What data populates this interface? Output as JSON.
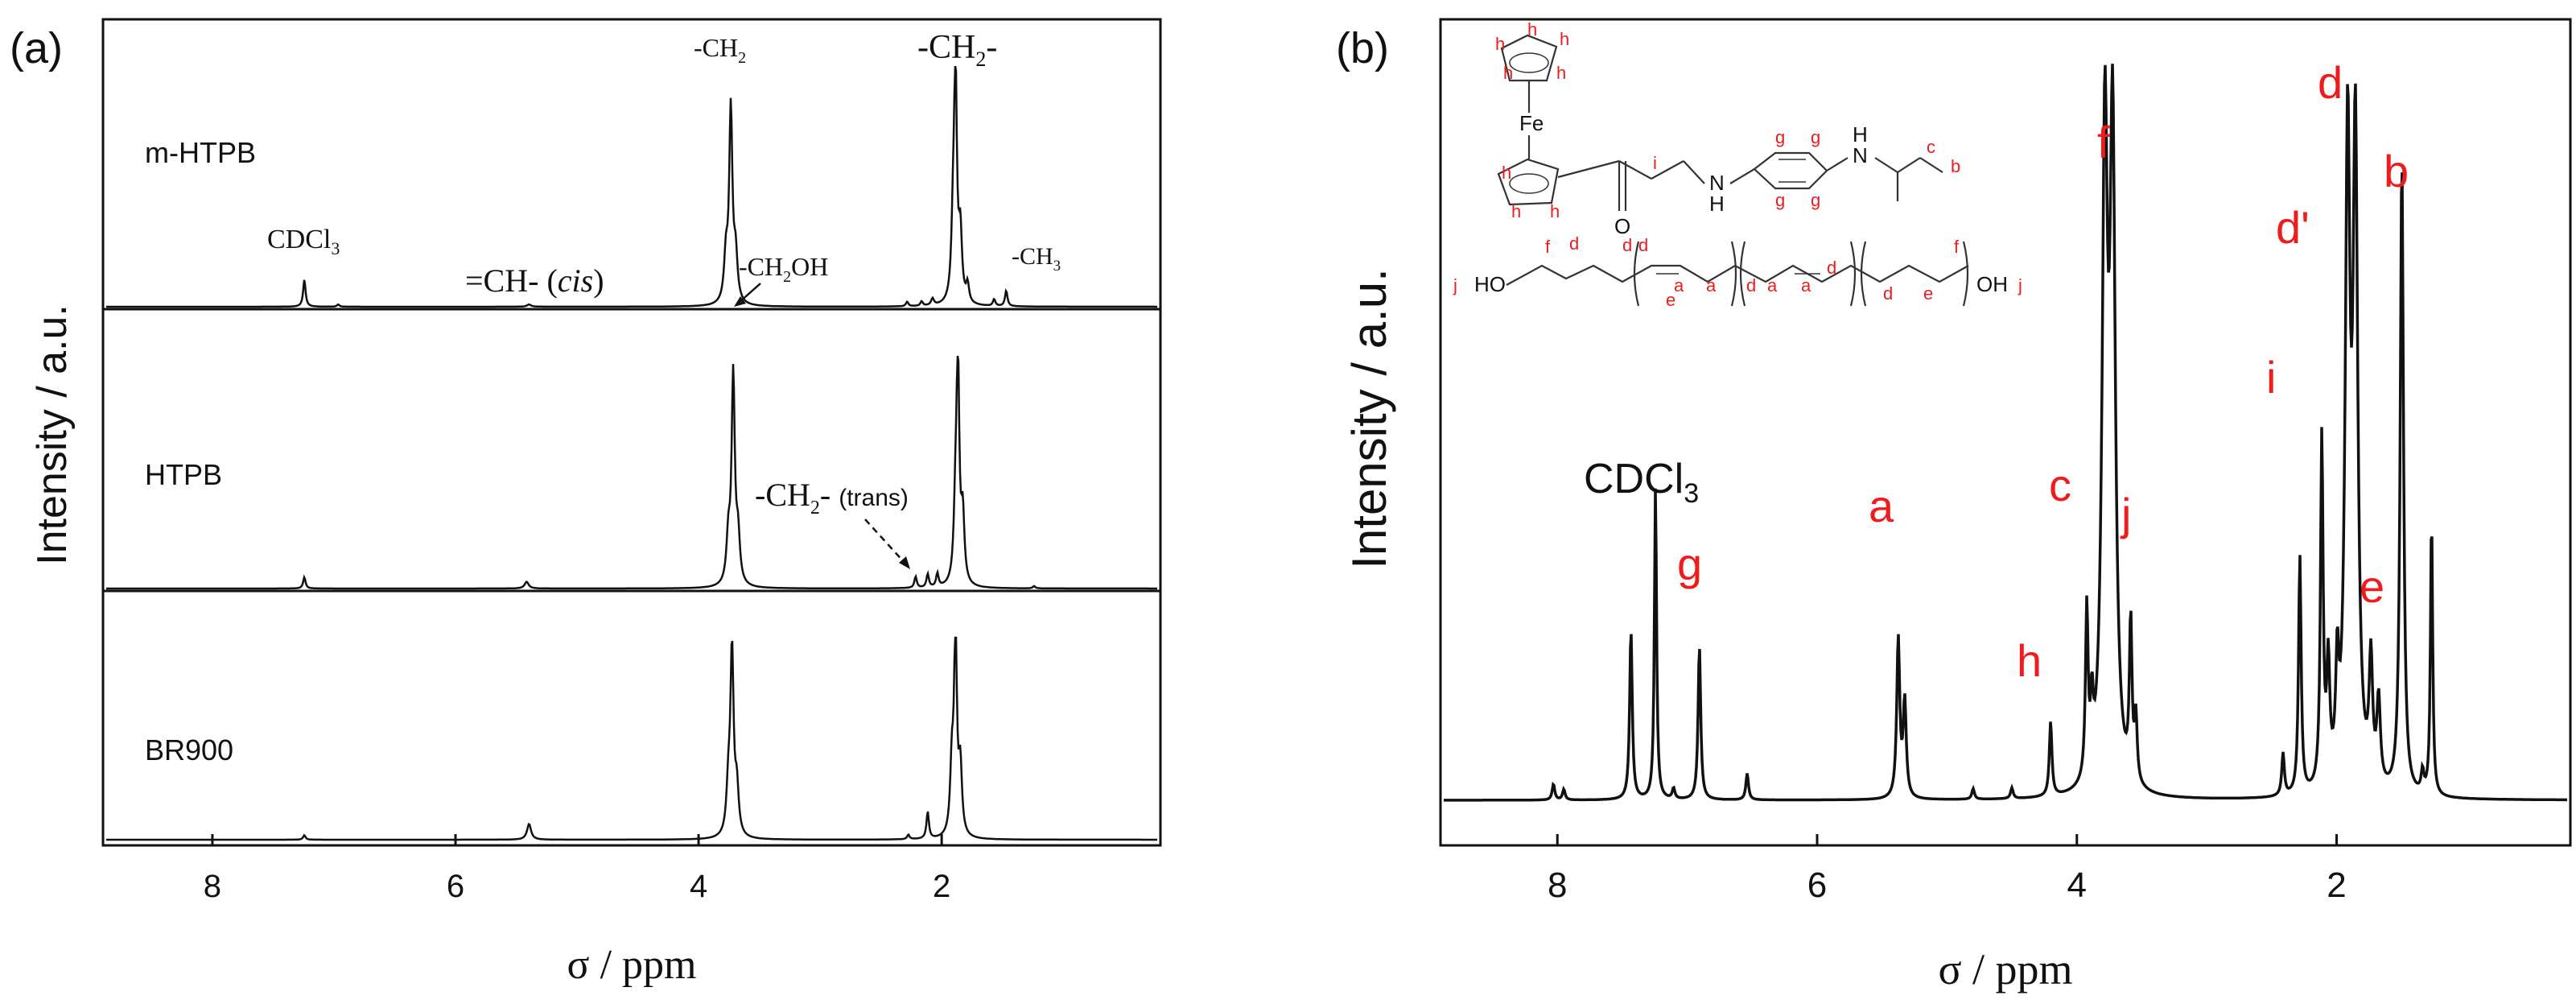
{
  "figure": {
    "panel_a_label": "(a)",
    "panel_b_label": "(b)"
  },
  "chart_data": [
    {
      "type": "line",
      "panel": "(a)",
      "xlabel": "σ / ppm",
      "ylabel": "Intensity / a.u.",
      "xlim": [
        8.9,
        0.2
      ],
      "x_ticks": [
        8,
        6,
        4,
        2
      ],
      "stacked": true,
      "series": [
        {
          "name": "m-HTPB",
          "peaks": [
            {
              "x": 7.26,
              "y": 0.12,
              "w": 0.012
            },
            {
              "x": 6.98,
              "y": 0.01,
              "w": 0.012
            },
            {
              "x": 5.4,
              "y": 0.01,
              "w": 0.02
            },
            {
              "x": 3.77,
              "y": 0.2,
              "w": 0.018
            },
            {
              "x": 3.73,
              "y": 0.86,
              "w": 0.016
            },
            {
              "x": 3.69,
              "y": 0.2,
              "w": 0.018
            },
            {
              "x": 2.27,
              "y": 0.02,
              "w": 0.012
            },
            {
              "x": 2.15,
              "y": 0.02,
              "w": 0.012
            },
            {
              "x": 2.06,
              "y": 0.03,
              "w": 0.014
            },
            {
              "x": 1.89,
              "y": 0.3,
              "w": 0.016
            },
            {
              "x": 1.87,
              "y": 1.0,
              "w": 0.014
            },
            {
              "x": 1.83,
              "y": 0.3,
              "w": 0.016
            },
            {
              "x": 1.77,
              "y": 0.08,
              "w": 0.014
            },
            {
              "x": 1.55,
              "y": 0.03,
              "w": 0.012
            },
            {
              "x": 1.45,
              "y": 0.07,
              "w": 0.012
            }
          ]
        },
        {
          "name": "HTPB",
          "peaks": [
            {
              "x": 7.26,
              "y": 0.05,
              "w": 0.012
            },
            {
              "x": 5.42,
              "y": 0.03,
              "w": 0.02
            },
            {
              "x": 3.75,
              "y": 0.2,
              "w": 0.018
            },
            {
              "x": 3.71,
              "y": 0.93,
              "w": 0.016
            },
            {
              "x": 3.67,
              "y": 0.2,
              "w": 0.018
            },
            {
              "x": 2.2,
              "y": 0.05,
              "w": 0.012
            },
            {
              "x": 2.1,
              "y": 0.06,
              "w": 0.012
            },
            {
              "x": 2.02,
              "y": 0.06,
              "w": 0.012
            },
            {
              "x": 1.87,
              "y": 0.3,
              "w": 0.016
            },
            {
              "x": 1.85,
              "y": 0.96,
              "w": 0.014
            },
            {
              "x": 1.81,
              "y": 0.3,
              "w": 0.016
            },
            {
              "x": 1.22,
              "y": 0.01,
              "w": 0.012
            }
          ]
        },
        {
          "name": "BR900",
          "peaks": [
            {
              "x": 7.26,
              "y": 0.02,
              "w": 0.012
            },
            {
              "x": 5.4,
              "y": 0.07,
              "w": 0.02
            },
            {
              "x": 3.75,
              "y": 0.2,
              "w": 0.018
            },
            {
              "x": 3.72,
              "y": 0.82,
              "w": 0.016
            },
            {
              "x": 3.68,
              "y": 0.2,
              "w": 0.018
            },
            {
              "x": 2.26,
              "y": 0.02,
              "w": 0.012
            },
            {
              "x": 2.1,
              "y": 0.12,
              "w": 0.012
            },
            {
              "x": 1.9,
              "y": 0.3,
              "w": 0.016
            },
            {
              "x": 1.87,
              "y": 0.92,
              "w": 0.014
            },
            {
              "x": 1.83,
              "y": 0.3,
              "w": 0.016
            }
          ]
        }
      ],
      "annotations": [
        {
          "text": "CDCl3",
          "x": 7.25
        },
        {
          "text": "=CH- (cis)",
          "x": 5.4
        },
        {
          "text": "-CH2",
          "x": 3.73
        },
        {
          "text": "-CH2OH",
          "x": 3.5
        },
        {
          "text": "-CH2-",
          "x": 1.87
        },
        {
          "text": "-CH3",
          "x": 1.3
        },
        {
          "text": "-CH2- (trans)",
          "x": 2.1
        }
      ]
    },
    {
      "type": "line",
      "panel": "(b)",
      "xlabel": "σ / ppm",
      "ylabel": "Intensity / a.u.",
      "xlim": [
        8.9,
        0.2
      ],
      "x_ticks": [
        8,
        6,
        4,
        2
      ],
      "series": [
        {
          "name": "",
          "peaks": [
            {
              "x": 8.05,
              "y": 0.03,
              "w": 0.012
            },
            {
              "x": 7.97,
              "y": 0.02,
              "w": 0.012
            },
            {
              "x": 7.45,
              "y": 0.32,
              "w": 0.012
            },
            {
              "x": 7.26,
              "y": 0.59,
              "w": 0.01
            },
            {
              "x": 7.12,
              "y": 0.02,
              "w": 0.012
            },
            {
              "x": 6.92,
              "y": 0.29,
              "w": 0.012
            },
            {
              "x": 6.55,
              "y": 0.05,
              "w": 0.012
            },
            {
              "x": 5.38,
              "y": 0.3,
              "w": 0.014
            },
            {
              "x": 5.33,
              "y": 0.18,
              "w": 0.014
            },
            {
              "x": 4.8,
              "y": 0.02,
              "w": 0.012
            },
            {
              "x": 4.5,
              "y": 0.02,
              "w": 0.012
            },
            {
              "x": 4.2,
              "y": 0.14,
              "w": 0.012
            },
            {
              "x": 3.92,
              "y": 0.32,
              "w": 0.012
            },
            {
              "x": 3.88,
              "y": 0.12,
              "w": 0.012
            },
            {
              "x": 3.78,
              "y": 1.2,
              "w": 0.025
            },
            {
              "x": 3.72,
              "y": 1.2,
              "w": 0.025
            },
            {
              "x": 3.58,
              "y": 0.3,
              "w": 0.012
            },
            {
              "x": 3.54,
              "y": 0.12,
              "w": 0.012
            },
            {
              "x": 2.4,
              "y": 0.08,
              "w": 0.012
            },
            {
              "x": 2.27,
              "y": 0.45,
              "w": 0.012
            },
            {
              "x": 2.1,
              "y": 0.66,
              "w": 0.012
            },
            {
              "x": 2.05,
              "y": 0.22,
              "w": 0.014
            },
            {
              "x": 1.98,
              "y": 0.2,
              "w": 0.014
            },
            {
              "x": 1.9,
              "y": 1.2,
              "w": 0.022
            },
            {
              "x": 1.84,
              "y": 1.2,
              "w": 0.022
            },
            {
              "x": 1.72,
              "y": 0.23,
              "w": 0.016
            },
            {
              "x": 1.66,
              "y": 0.16,
              "w": 0.016
            },
            {
              "x": 1.48,
              "y": 1.2,
              "w": 0.015
            },
            {
              "x": 1.32,
              "y": 0.04,
              "w": 0.012
            },
            {
              "x": 1.25,
              "y": 0.53,
              "w": 0.01
            }
          ]
        }
      ],
      "annotations": [
        {
          "text": "CDCl3",
          "x": 7.26
        },
        {
          "text": "g",
          "x": 6.92
        },
        {
          "text": "a",
          "x": 5.38
        },
        {
          "text": "h",
          "x": 4.2
        },
        {
          "text": "c",
          "x": 3.92
        },
        {
          "text": "f",
          "x": 3.75
        },
        {
          "text": "j",
          "x": 3.56
        },
        {
          "text": "i",
          "x": 2.27
        },
        {
          "text": "d'",
          "x": 2.1
        },
        {
          "text": "d",
          "x": 1.87
        },
        {
          "text": "e",
          "x": 1.68
        },
        {
          "text": "b",
          "x": 1.48
        }
      ],
      "inset_structure_labels": {
        "atoms": [
          "Fe",
          "O",
          "H",
          "N",
          "H",
          "N",
          "HO",
          "OH"
        ],
        "letters": [
          "h",
          "h",
          "h",
          "h",
          "h",
          "h",
          "h",
          "h",
          "i",
          "g",
          "g",
          "g",
          "g",
          "c",
          "b",
          "f",
          "d",
          "d",
          "a",
          "a",
          "d",
          "d",
          "a",
          "a",
          "d",
          "d",
          "e",
          "e",
          "f",
          "j",
          "j"
        ]
      }
    }
  ]
}
